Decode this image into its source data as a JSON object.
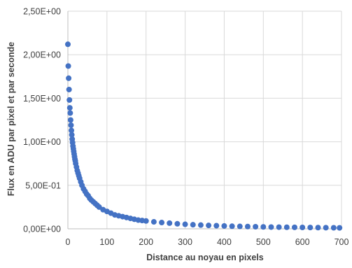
{
  "chart_data": {
    "type": "scatter",
    "xlabel": "Distance au noyau en pixels",
    "ylabel": "Flux en ADU par pixel et par seconde",
    "xlim": [
      0,
      700
    ],
    "ylim": [
      0,
      2.5
    ],
    "x_ticks": [
      "0",
      "100",
      "200",
      "300",
      "400",
      "500",
      "600",
      "700"
    ],
    "y_ticks": [
      "0,00E+00",
      "5,00E-01",
      "1,00E+00",
      "1,50E+00",
      "2,00E+00",
      "2,50E+00"
    ],
    "grid": "vertical and horizontal",
    "legend": "none",
    "marker_color": "#4472C4",
    "series": [
      {
        "x": [
          0,
          1,
          2,
          3,
          4,
          5,
          6,
          7,
          8,
          9,
          10,
          11,
          12,
          13,
          14,
          15,
          16,
          17,
          18,
          19,
          20,
          22,
          24,
          26,
          28,
          30,
          33,
          36,
          40,
          44,
          48,
          52,
          56,
          60,
          65,
          70,
          75,
          80,
          90,
          100,
          110,
          120,
          130,
          140,
          150,
          160,
          170,
          180,
          190,
          200,
          220,
          240,
          260,
          280,
          300,
          320,
          340,
          360,
          380,
          400,
          420,
          440,
          460,
          480,
          500,
          520,
          540,
          560,
          580,
          600,
          620,
          640,
          660,
          680,
          695
        ],
        "y": [
          2.12,
          1.87,
          1.73,
          1.6,
          1.48,
          1.39,
          1.33,
          1.25,
          1.19,
          1.13,
          1.08,
          1.03,
          0.99,
          0.95,
          0.92,
          0.89,
          0.86,
          0.83,
          0.8,
          0.78,
          0.75,
          0.71,
          0.67,
          0.64,
          0.61,
          0.58,
          0.54,
          0.5,
          0.46,
          0.43,
          0.4,
          0.38,
          0.35,
          0.33,
          0.31,
          0.29,
          0.27,
          0.25,
          0.22,
          0.2,
          0.18,
          0.16,
          0.15,
          0.14,
          0.13,
          0.12,
          0.11,
          0.1,
          0.095,
          0.09,
          0.08,
          0.072,
          0.065,
          0.058,
          0.052,
          0.047,
          0.043,
          0.039,
          0.036,
          0.033,
          0.03,
          0.028,
          0.026,
          0.024,
          0.022,
          0.02,
          0.019,
          0.018,
          0.017,
          0.016,
          0.015,
          0.014,
          0.013,
          0.012,
          0.011
        ]
      }
    ]
  }
}
